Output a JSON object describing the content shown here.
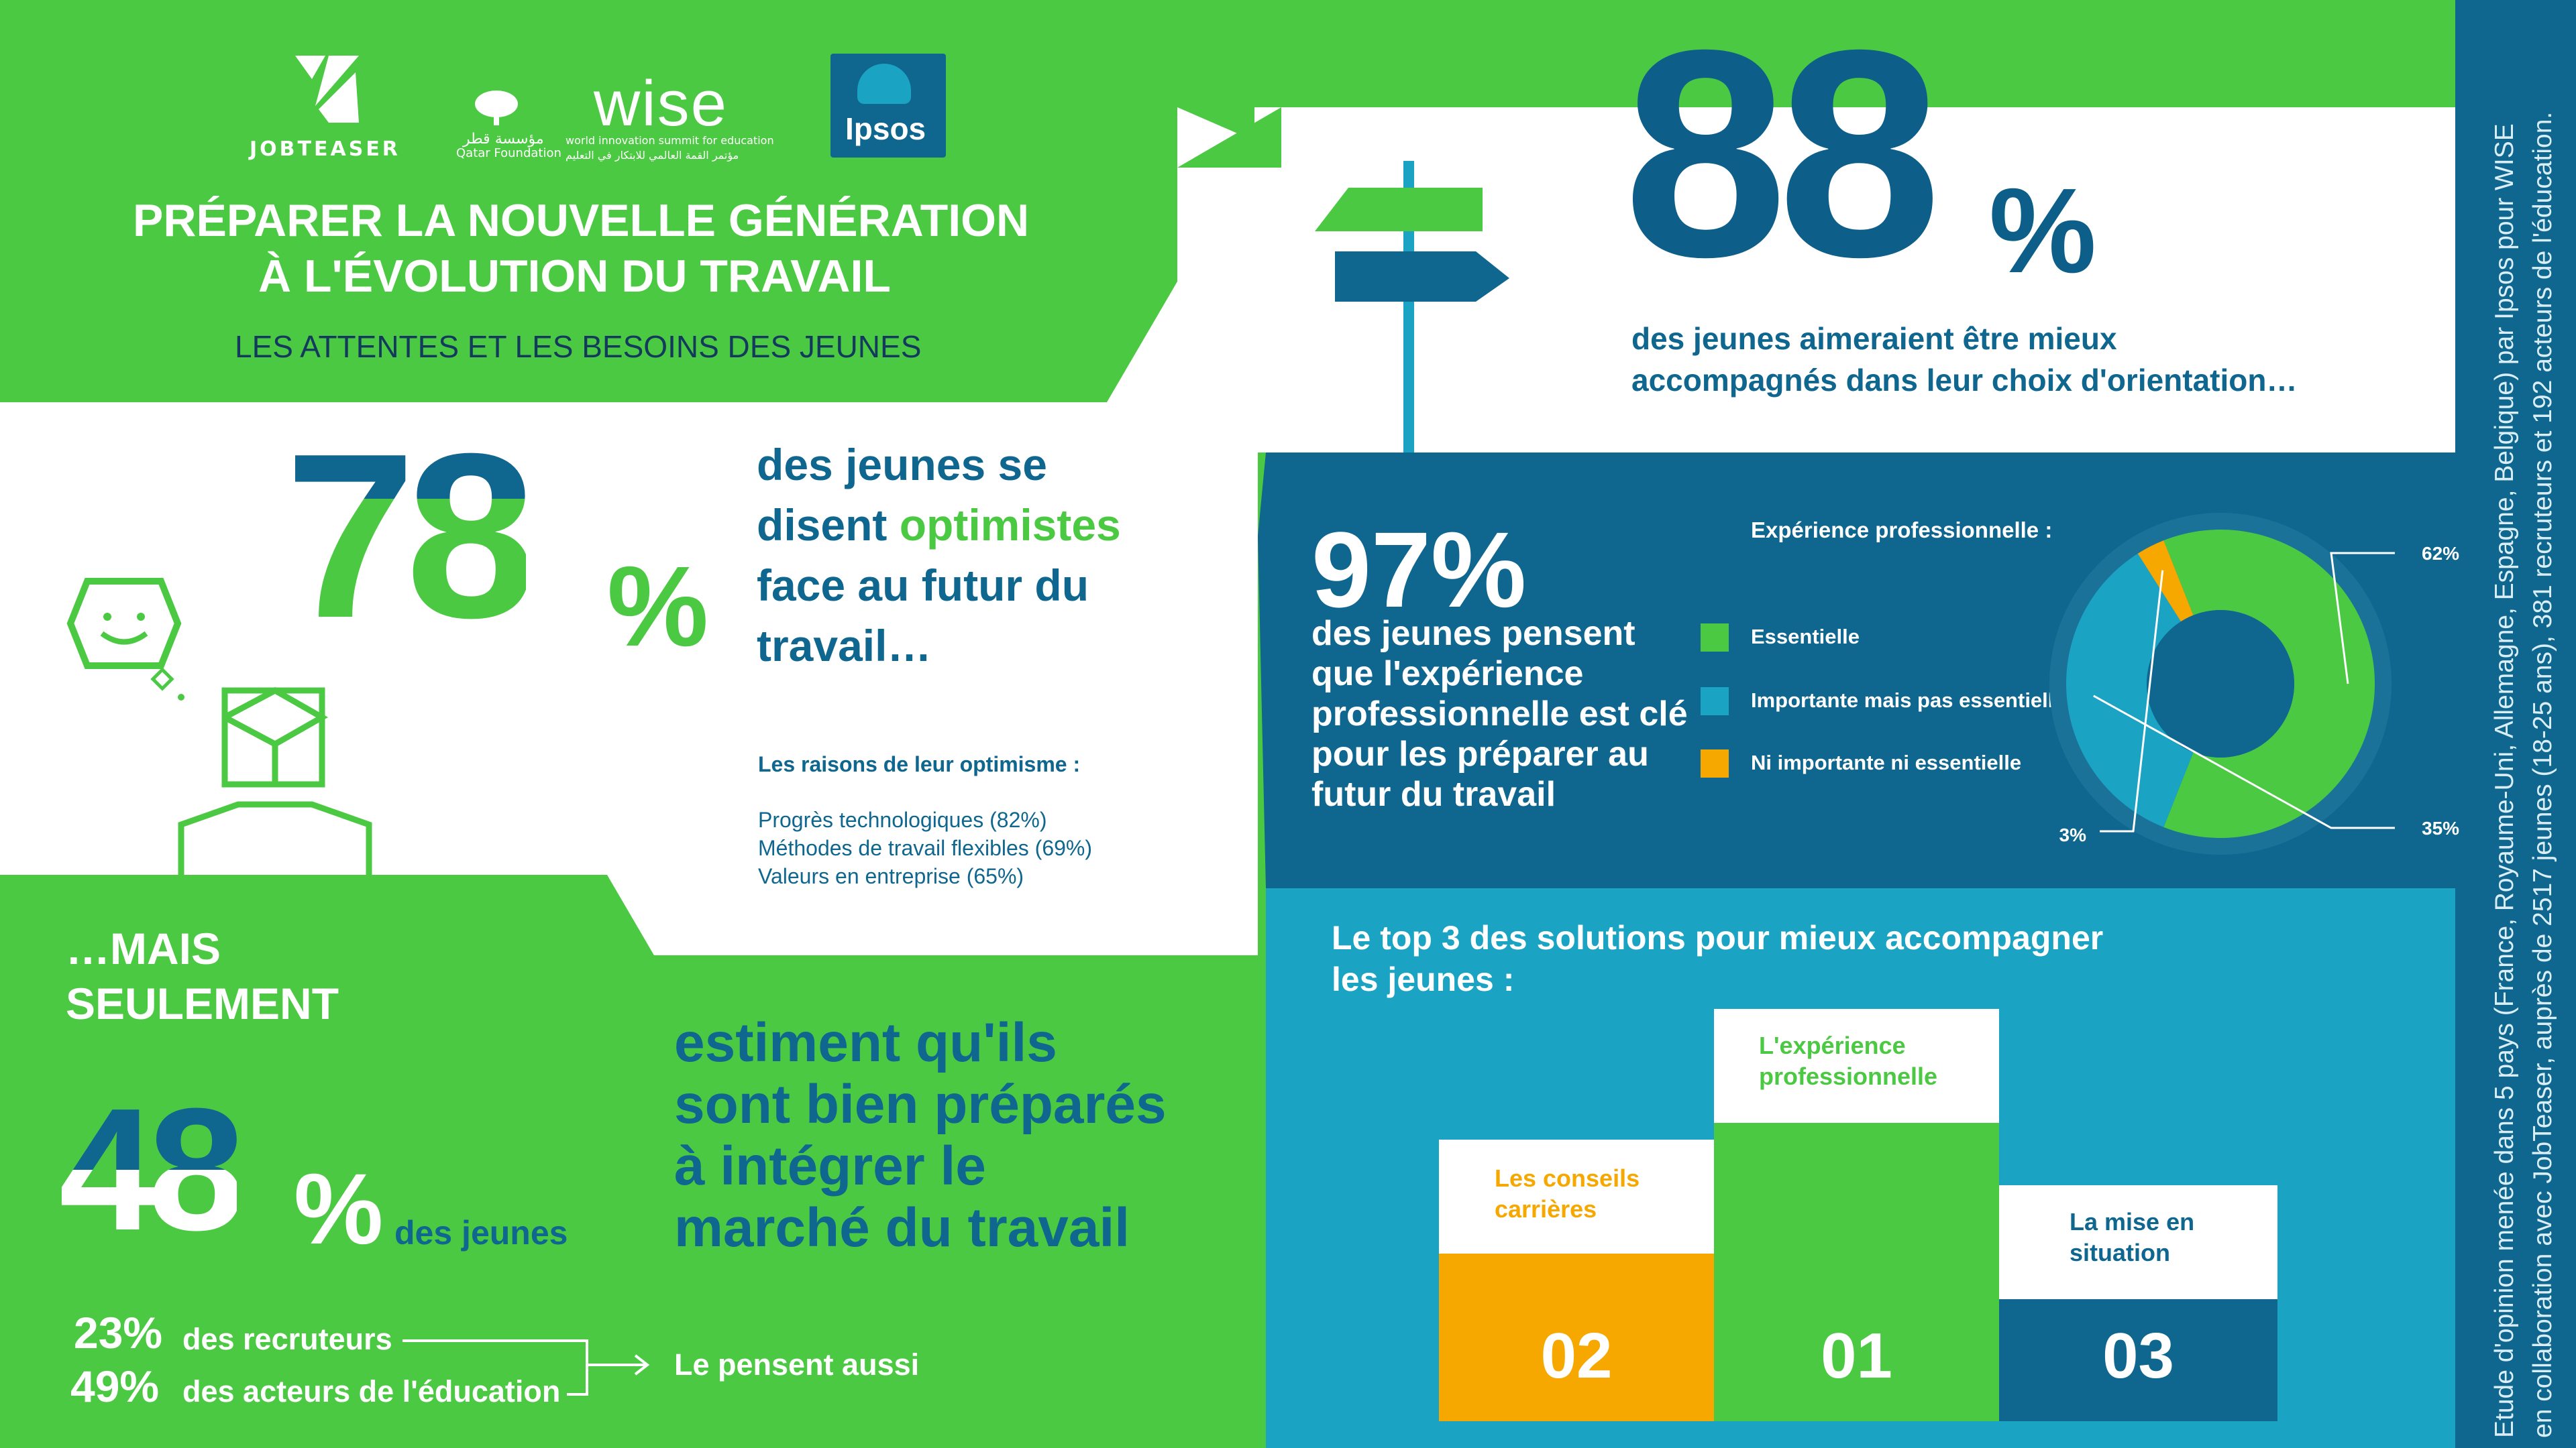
{
  "logos": {
    "jobteaser": "JOBTEASER",
    "qatar_arabic": "مؤسسة قطر",
    "qatar": "Qatar Foundation",
    "wise": "wise",
    "wise_sub": "world innovation summit for education",
    "wise_arabic": "مؤتمر القمة العالمي للابتكار في التعليم",
    "ipsos": "Ipsos"
  },
  "header": {
    "title_line1": "PRÉPARER LA NOUVELLE GÉNÉRATION",
    "title_line2": "À L'ÉVOLUTION DU TRAVAIL",
    "subtitle": "LES ATTENTES ET LES BESOINS DES JEUNES"
  },
  "stat88": {
    "number": "88",
    "percent": "%",
    "line1": "des jeunes aimeraient être mieux",
    "line2": "accompagnés dans leur choix d'orientation…"
  },
  "stat78": {
    "number": "78",
    "percent": "%",
    "line1": "des jeunes se",
    "line2_a": "disent ",
    "line2_b": "optimistes",
    "line3": "face au futur du",
    "line4": "travail…",
    "reasons_title": "Les raisons de leur optimisme :",
    "reasons": [
      "Progrès technologiques (82%)",
      "Méthodes de travail flexibles (69%)",
      "Valeurs en entreprise (65%)"
    ]
  },
  "stat97": {
    "number": "97%",
    "lines": [
      "des jeunes pensent",
      "que l'expérience",
      "professionnelle est clé",
      "pour les préparer au",
      "futur du travail"
    ],
    "legend_title": "Expérience professionnelle :"
  },
  "chart_data": {
    "type": "pie",
    "title": "Expérience professionnelle :",
    "categories": [
      "Essentielle",
      "Importante mais pas essentielle",
      "Ni importante ni essentielle"
    ],
    "values": [
      62,
      35,
      3
    ],
    "value_labels": [
      "62%",
      "35%",
      "3%"
    ],
    "colors": [
      "#4cc943",
      "#1aa3c3",
      "#f7a800"
    ],
    "legend_placement": "left"
  },
  "stat48": {
    "intro1": "…MAIS",
    "intro2": "SEULEMENT",
    "number": "48",
    "percent": "%",
    "suffix": "des jeunes",
    "lines": [
      "estiment qu'ils",
      "sont bien préparés",
      "à intégrer le",
      "marché du travail"
    ],
    "recruiters_pct": "23%",
    "recruiters_label": "des recruteurs",
    "educators_pct": "49%",
    "educators_label": "des acteurs de l'éducation",
    "also": "Le pensent aussi"
  },
  "solutions": {
    "title_line1": "Le top 3 des solutions pour mieux accompagner",
    "title_line2": "les jeunes :",
    "items": [
      {
        "rank": "02",
        "line1": "Les conseils",
        "line2": "carrières",
        "color": "#f7a800"
      },
      {
        "rank": "01",
        "line1": "L'expérience",
        "line2": "professionnelle",
        "color": "#4cc943"
      },
      {
        "rank": "03",
        "line1": "La mise en",
        "line2": "situation",
        "color": "#0f668f"
      }
    ]
  },
  "sidebar": {
    "line1": "Etude d'opinion menée dans 5 pays (France, Royaume-Uni, Allemagne, Espagne, Belgique) par Ipsos pour WISE",
    "line2": "en collaboration avec JobTeaser, auprès de 2517 jeunes (18-25 ans), 381 recruteurs et 192 acteurs de l'éducation."
  },
  "colors": {
    "green": "#4cc943",
    "blue": "#0f668f",
    "teal": "#1aa3c3",
    "orange": "#f7a800"
  }
}
